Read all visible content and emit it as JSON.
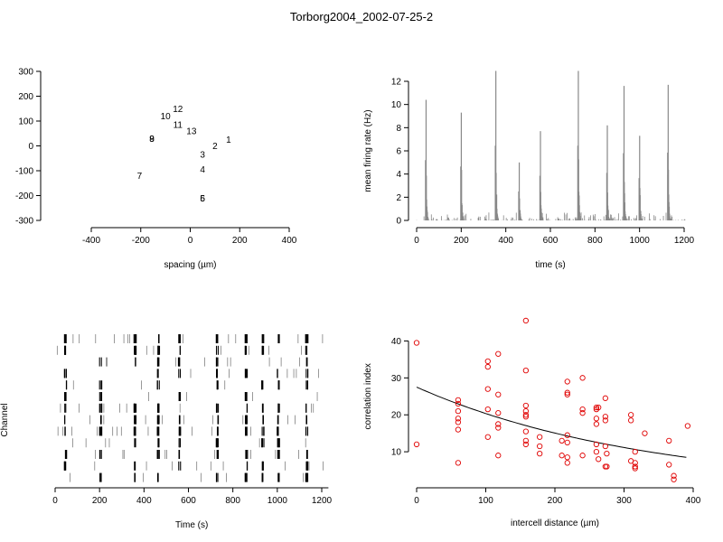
{
  "title": "Torborg2004_2002-07-25-2",
  "chart_data": [
    {
      "type": "scatter",
      "panel": "electrode-layout",
      "xlabel": "spacing (µm)",
      "ylabel": "",
      "xlim": [
        -400,
        400
      ],
      "ylim": [
        -300,
        300
      ],
      "xticks": [
        -400,
        -200,
        0,
        200,
        400
      ],
      "yticks": [
        -300,
        -200,
        -100,
        0,
        100,
        200,
        300
      ],
      "points": [
        {
          "label": "1",
          "x": 155,
          "y": 25
        },
        {
          "label": "2",
          "x": 100,
          "y": 0
        },
        {
          "label": "3",
          "x": 50,
          "y": -35
        },
        {
          "label": "4",
          "x": 50,
          "y": -95
        },
        {
          "label": "5",
          "x": 50,
          "y": -210
        },
        {
          "label": "6",
          "x": 50,
          "y": -210
        },
        {
          "label": "7",
          "x": -205,
          "y": -120
        },
        {
          "label": "8",
          "x": -155,
          "y": 30
        },
        {
          "label": "9",
          "x": -155,
          "y": 30
        },
        {
          "label": "10",
          "x": -100,
          "y": 120
        },
        {
          "label": "11",
          "x": -50,
          "y": 85
        },
        {
          "label": "12",
          "x": -50,
          "y": 150
        },
        {
          "label": "13",
          "x": 5,
          "y": 60
        }
      ]
    },
    {
      "type": "area",
      "panel": "mean-firing-rate",
      "xlabel": "time (s)",
      "ylabel": "mean firing rate (Hz)",
      "xlim": [
        0,
        1200
      ],
      "ylim": [
        0,
        12
      ],
      "xticks": [
        0,
        200,
        400,
        600,
        800,
        1000,
        1200
      ],
      "yticks": [
        0,
        2,
        4,
        6,
        8,
        10,
        12
      ],
      "color": "#888888",
      "bursts": [
        {
          "t": 42,
          "peak": 10.4
        },
        {
          "t": 200,
          "peak": 9.3
        },
        {
          "t": 355,
          "peak": 12.9
        },
        {
          "t": 460,
          "peak": 5.0
        },
        {
          "t": 555,
          "peak": 7.7
        },
        {
          "t": 725,
          "peak": 12.9
        },
        {
          "t": 855,
          "peak": 8.2
        },
        {
          "t": 930,
          "peak": 11.6
        },
        {
          "t": 1000,
          "peak": 7.3
        },
        {
          "t": 1128,
          "peak": 11.7
        }
      ]
    },
    {
      "type": "raster",
      "panel": "spike-raster",
      "xlabel": "Time (s)",
      "ylabel": "Channel",
      "xlim": [
        0,
        1230
      ],
      "xticks": [
        0,
        200,
        400,
        600,
        800,
        1000,
        1200
      ],
      "channels": 13
    },
    {
      "type": "scatter",
      "panel": "correlation-vs-distance",
      "xlabel": "intercell distance (µm)",
      "ylabel": "correlation index",
      "xlim": [
        0,
        400
      ],
      "ylim": [
        0,
        45
      ],
      "xticks": [
        0,
        100,
        200,
        300,
        400
      ],
      "yticks": [
        10,
        20,
        30,
        40
      ],
      "point_color": "#e00000",
      "fit": {
        "x": [
          0,
          390
        ],
        "y": [
          27.5,
          8.5
        ]
      },
      "points": [
        [
          0,
          39.5
        ],
        [
          0,
          12
        ],
        [
          60,
          24
        ],
        [
          60,
          23
        ],
        [
          60,
          21
        ],
        [
          60,
          19
        ],
        [
          60,
          18
        ],
        [
          60,
          16
        ],
        [
          60,
          7
        ],
        [
          103,
          34.5
        ],
        [
          103,
          33
        ],
        [
          103,
          27
        ],
        [
          103,
          21.5
        ],
        [
          103,
          14
        ],
        [
          118,
          36.5
        ],
        [
          118,
          25.5
        ],
        [
          118,
          20.5
        ],
        [
          118,
          17.5
        ],
        [
          118,
          16.5
        ],
        [
          118,
          9
        ],
        [
          158,
          45.5
        ],
        [
          158,
          32
        ],
        [
          158,
          22.5
        ],
        [
          158,
          21
        ],
        [
          158,
          20
        ],
        [
          158,
          19.5
        ],
        [
          158,
          15.5
        ],
        [
          158,
          13
        ],
        [
          158,
          12
        ],
        [
          178,
          14
        ],
        [
          178,
          11.5
        ],
        [
          178,
          9.5
        ],
        [
          210,
          13
        ],
        [
          210,
          9
        ],
        [
          218,
          29
        ],
        [
          218,
          26
        ],
        [
          218,
          25.5
        ],
        [
          218,
          14.5
        ],
        [
          218,
          12.5
        ],
        [
          218,
          8.5
        ],
        [
          218,
          7
        ],
        [
          240,
          30
        ],
        [
          240,
          21.5
        ],
        [
          240,
          20.5
        ],
        [
          240,
          9
        ],
        [
          260,
          22
        ],
        [
          260,
          21.5
        ],
        [
          260,
          19
        ],
        [
          260,
          17.5
        ],
        [
          260,
          12
        ],
        [
          260,
          10
        ],
        [
          263,
          22
        ],
        [
          263,
          8
        ],
        [
          273,
          24.5
        ],
        [
          273,
          19.5
        ],
        [
          273,
          18.5
        ],
        [
          273,
          11.5
        ],
        [
          273,
          6
        ],
        [
          275,
          9.5
        ],
        [
          275,
          6
        ],
        [
          310,
          20
        ],
        [
          310,
          18.5
        ],
        [
          310,
          7.5
        ],
        [
          316,
          10
        ],
        [
          316,
          7
        ],
        [
          316,
          6
        ],
        [
          316,
          5.5
        ],
        [
          330,
          15
        ],
        [
          365,
          13
        ],
        [
          365,
          6.5
        ],
        [
          372,
          3.5
        ],
        [
          372,
          2.5
        ],
        [
          392,
          17
        ]
      ]
    }
  ]
}
